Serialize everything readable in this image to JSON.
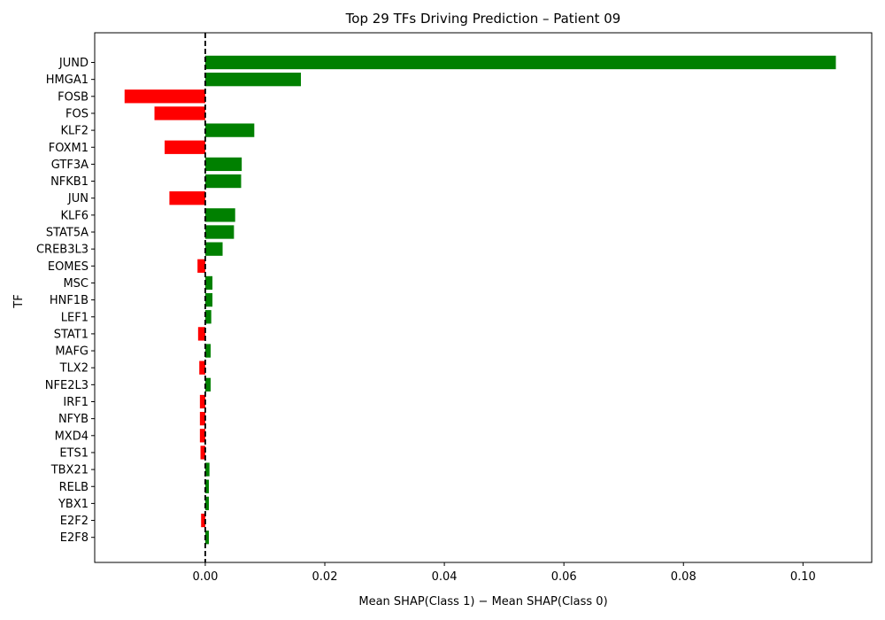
{
  "chart_data": {
    "type": "bar",
    "orientation": "horizontal",
    "title": "Top 29 TFs Driving Prediction – Patient 09",
    "xlabel": "Mean SHAP(Class 1) − Mean SHAP(Class 0)",
    "ylabel": "TF",
    "xlim": [
      -0.0185,
      0.1115
    ],
    "xticks": [
      0.0,
      0.02,
      0.04,
      0.06,
      0.08,
      0.1
    ],
    "xtick_labels": [
      "0.00",
      "0.02",
      "0.04",
      "0.06",
      "0.08",
      "0.10"
    ],
    "categories": [
      "JUND",
      "HMGA1",
      "FOSB",
      "FOS",
      "KLF2",
      "FOXM1",
      "GTF3A",
      "NFKB1",
      "JUN",
      "KLF6",
      "STAT5A",
      "CREB3L3",
      "EOMES",
      "MSC",
      "HNF1B",
      "LEF1",
      "STAT1",
      "MAFG",
      "TLX2",
      "NFE2L3",
      "IRF1",
      "NFYB",
      "MXD4",
      "ETS1",
      "TBX21",
      "RELB",
      "YBX1",
      "E2F2",
      "E2F8"
    ],
    "values": [
      0.1055,
      0.016,
      -0.0135,
      -0.0085,
      0.0082,
      -0.0068,
      0.0061,
      0.006,
      -0.006,
      0.005,
      0.0048,
      0.0029,
      -0.0013,
      0.0012,
      0.0012,
      0.001,
      -0.0012,
      0.0009,
      -0.001,
      0.0009,
      -0.0009,
      -0.0009,
      -0.0009,
      -0.0008,
      0.0007,
      0.0006,
      0.0006,
      -0.0007,
      0.0006
    ],
    "positive_color": "#008000",
    "negative_color": "#ff0000",
    "reference_line": {
      "x": 0.0,
      "style": "dashed",
      "color": "#000000"
    },
    "grid": false,
    "legend": "none"
  }
}
